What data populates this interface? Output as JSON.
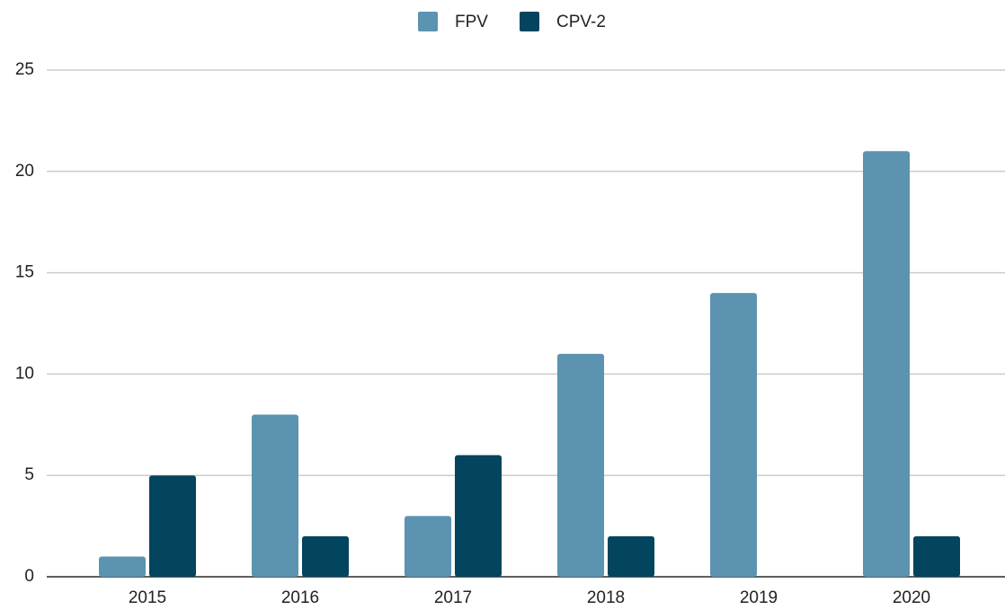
{
  "chart_data": {
    "type": "bar",
    "categories": [
      "2015",
      "2016",
      "2017",
      "2018",
      "2019",
      "2020"
    ],
    "series": [
      {
        "name": "FPV",
        "color": "#5b93b0",
        "values": [
          1,
          8,
          3,
          11,
          14,
          21
        ]
      },
      {
        "name": "CPV-2",
        "color": "#03445e",
        "values": [
          5,
          2,
          6,
          2,
          0,
          2
        ]
      }
    ],
    "ylim": [
      0,
      25
    ],
    "yticks": [
      0,
      5,
      10,
      15,
      20,
      25
    ],
    "grid": true,
    "legend": "top"
  }
}
